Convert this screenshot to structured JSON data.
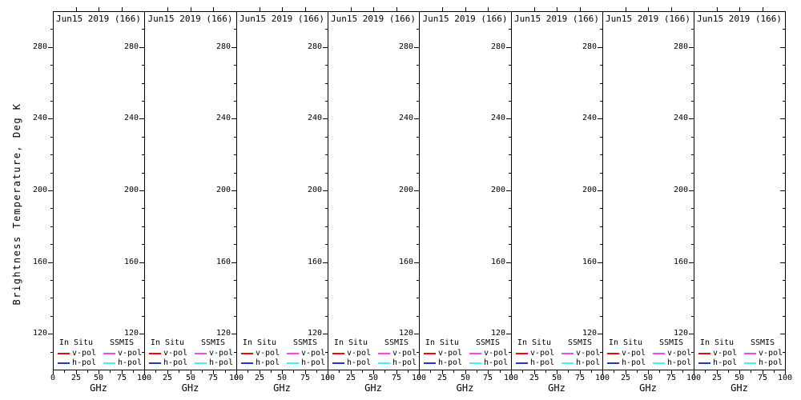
{
  "chart_data": {
    "type": "line",
    "layout": "row of 8 identical empty subplots",
    "subplot_titles": [
      "Jun15 2019 (166)",
      "Jun15 2019 (166)",
      "Jun15 2019 (166)",
      "Jun15 2019 (166)",
      "Jun15 2019 (166)",
      "Jun15 2019 (166)",
      "Jun15 2019 (166)",
      "Jun15 2019 (166)"
    ],
    "x": {
      "label": "GHz",
      "range": [
        0,
        100
      ],
      "ticks": [
        0,
        25,
        50,
        75,
        100
      ],
      "tick_labels": [
        "0",
        "25",
        "50",
        "75",
        "100"
      ],
      "minor_ticks": [
        12.5,
        37.5,
        62.5,
        87.5
      ]
    },
    "y": {
      "label": "Brightness Temperature, Deg K",
      "range": [
        100,
        300
      ],
      "ticks": [
        120,
        160,
        200,
        240,
        280
      ],
      "tick_labels": [
        "120",
        "160",
        "200",
        "240",
        "280"
      ],
      "minor_step": 10
    },
    "series": [],
    "note": "no data curves plotted; panels are empty except legends",
    "legend": {
      "groups": [
        {
          "name": "In Situ",
          "entries": [
            {
              "label": "v-pol",
              "color": "#ff0000"
            },
            {
              "label": "h-pol",
              "color": "#2233cc"
            }
          ]
        },
        {
          "name": "SSMIS",
          "entries": [
            {
              "label": "v-pol",
              "color": "#ff44ee"
            },
            {
              "label": "h-pol",
              "color": "#3df5ee"
            }
          ]
        }
      ],
      "grid": "on-every-subplot",
      "position": "bottom-inside"
    },
    "colors": {
      "background": "#ffffff",
      "axis": "#000000",
      "text": "#000000"
    }
  }
}
